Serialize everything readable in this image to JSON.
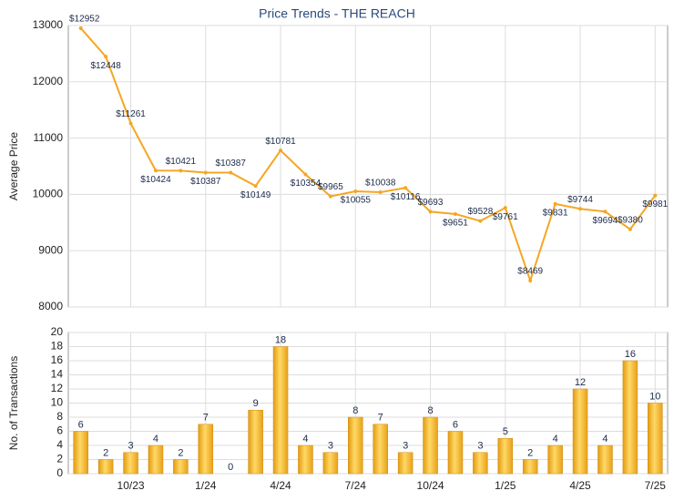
{
  "chart_data": [
    {
      "type": "line",
      "title": "Price Trends - THE REACH",
      "y_label": "Average Price",
      "ylim": [
        8000,
        13000
      ],
      "yticks": [
        8000,
        9000,
        10000,
        11000,
        12000,
        13000
      ],
      "grid": true,
      "series": [
        {
          "color": "#f5a623",
          "values": [
            12952,
            12448,
            11261,
            10424,
            10421,
            10387,
            10387,
            10149,
            10781,
            10354,
            9965,
            10055,
            10038,
            10116,
            9693,
            9651,
            9528,
            9761,
            8469,
            9831,
            9744,
            9694,
            9380,
            9981
          ],
          "value_labels": [
            "$12952",
            "$12448",
            "$11261",
            "$10424",
            "$10421",
            "$10387",
            "$10387",
            "$10149",
            "$10781",
            "$10354",
            "$9965",
            "$10055",
            "$10038",
            "$10116",
            "$9693",
            "$9651",
            "$9528",
            "$9761",
            "$8469",
            "$9831",
            "$9744",
            "$9694",
            "$9380",
            "$9981"
          ]
        }
      ]
    },
    {
      "type": "bar",
      "y_label": "No. of Transactions",
      "categories": [
        null,
        null,
        "10/23",
        null,
        null,
        "1/24",
        null,
        null,
        "4/24",
        null,
        null,
        "7/24",
        null,
        null,
        "10/24",
        null,
        null,
        "1/25",
        null,
        null,
        "4/25",
        null,
        null,
        "7/25"
      ],
      "values": [
        6,
        2,
        3,
        4,
        2,
        7,
        0,
        9,
        18,
        4,
        3,
        8,
        7,
        3,
        8,
        6,
        3,
        5,
        2,
        4,
        12,
        4,
        16,
        10
      ],
      "color": "#f5b324",
      "ylim": [
        0,
        20
      ],
      "yticks": [
        0,
        2,
        4,
        6,
        8,
        10,
        12,
        14,
        16,
        18,
        20
      ],
      "grid": true
    }
  ]
}
